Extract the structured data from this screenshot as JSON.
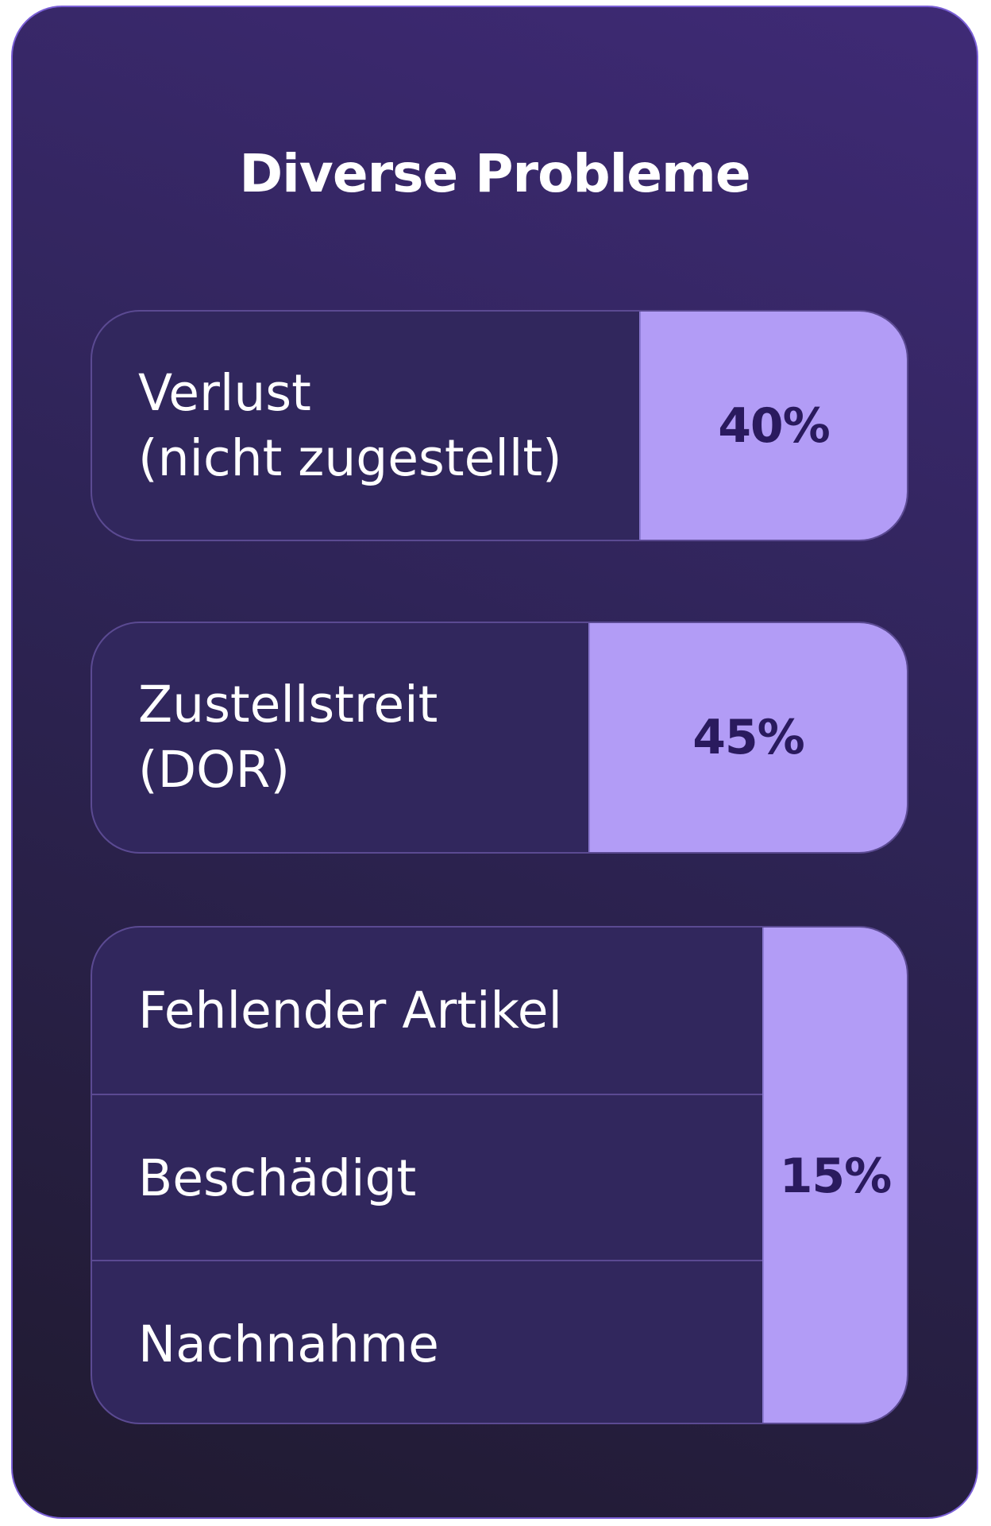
{
  "title": "Diverse Probleme",
  "colors": {
    "card_background_top": "#3f2a76",
    "card_background_bottom": "#201a30",
    "row_background": "#31275d",
    "value_background": "#b29cf6",
    "value_text": "#2a1a5e",
    "label_text": "#ffffff"
  },
  "chart_data": {
    "type": "table",
    "title": "Diverse Probleme",
    "rows": [
      {
        "labels": [
          "Verlust\n(nicht zugestellt)"
        ],
        "value": "40%"
      },
      {
        "labels": [
          "Zustellstreit\n(DOR)"
        ],
        "value": "45%"
      },
      {
        "labels": [
          "Fehlender Artikel",
          "Beschädigt",
          "Nachnahme"
        ],
        "value": "15%"
      }
    ]
  }
}
